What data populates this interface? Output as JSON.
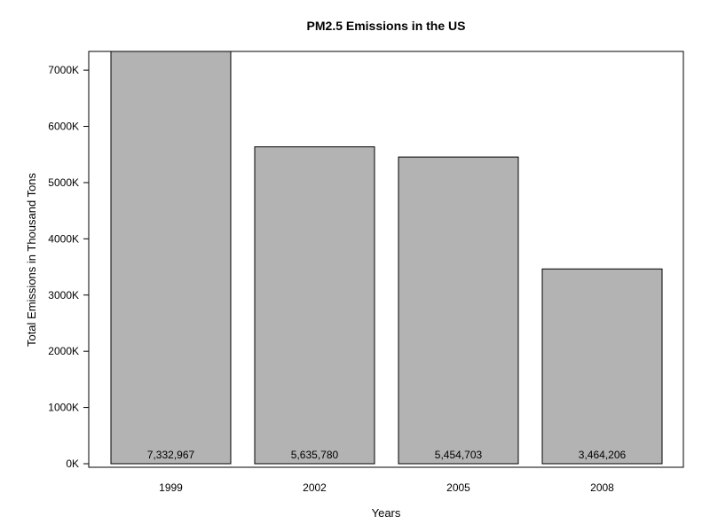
{
  "chart_data": {
    "type": "bar",
    "title": "PM2.5 Emissions in the US",
    "xlabel": "Years",
    "ylabel": "Total Emissions in Thousand Tons",
    "categories": [
      "1999",
      "2002",
      "2005",
      "2008"
    ],
    "values": [
      7332967,
      5635780,
      5454703,
      3464206
    ],
    "value_labels": [
      "7,332,967",
      "5,635,780",
      "5,454,703",
      "3,464,206"
    ],
    "y_ticks": [
      0,
      1000000,
      2000000,
      3000000,
      4000000,
      5000000,
      6000000,
      7000000
    ],
    "y_tick_labels": [
      "0K",
      "1000K",
      "2000K",
      "3000K",
      "4000K",
      "5000K",
      "6000K",
      "7000K"
    ],
    "ylim": [
      0,
      7332967
    ],
    "grid": false,
    "legend": "none",
    "bar_color": "#b3b3b3",
    "bar_edge_color": "#000000"
  }
}
